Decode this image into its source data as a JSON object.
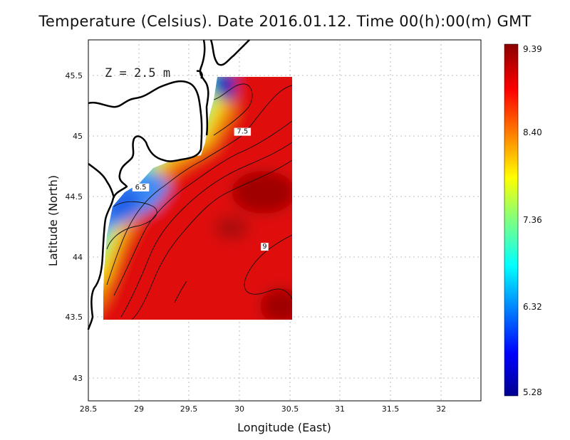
{
  "title": "Temperature (Celsius). Date 2016.01.12. Time 00(h):00(m) GMT",
  "depth_label": "Z = 2.5 m",
  "x_axis": {
    "label": "Longitude (East)",
    "ticks": [
      "28.5",
      "29",
      "29.5",
      "30",
      "30.5",
      "31",
      "31.5",
      "32"
    ]
  },
  "y_axis": {
    "label": "Latitude (North)",
    "ticks": [
      "43",
      "43.5",
      "44",
      "44.5",
      "45",
      "45.5"
    ]
  },
  "colorbar": {
    "ticks": [
      "9.39",
      "8.40",
      "7.36",
      "6.32",
      "5.28"
    ],
    "min": 5.28,
    "max": 9.39
  },
  "contour_labels": [
    {
      "text": "7.5",
      "lon": 30.03,
      "lat": 45.02
    },
    {
      "text": "6.5",
      "lon": 29.02,
      "lat": 44.56
    },
    {
      "text": "9",
      "lon": 30.25,
      "lat": 44.07
    }
  ],
  "chart_data": {
    "type": "heatmap",
    "title": "Temperature (Celsius). Date 2016.01.12. Time 00(h):00(m) GMT",
    "xlabel": "Longitude (East)",
    "ylabel": "Latitude (North)",
    "xlim": [
      28.5,
      32.4
    ],
    "ylim": [
      42.8,
      45.8
    ],
    "data_extent": {
      "lon": [
        28.65,
        30.55
      ],
      "lat": [
        43.48,
        45.5
      ]
    },
    "value_range": [
      5.28,
      9.39
    ],
    "contour_levels": [
      6.5,
      7.0,
      7.5,
      8.0,
      8.5,
      9.0
    ],
    "grid": true,
    "colors": {
      "low": "#00008f",
      "mid": "#ffff00",
      "high": "#8b0000"
    }
  }
}
